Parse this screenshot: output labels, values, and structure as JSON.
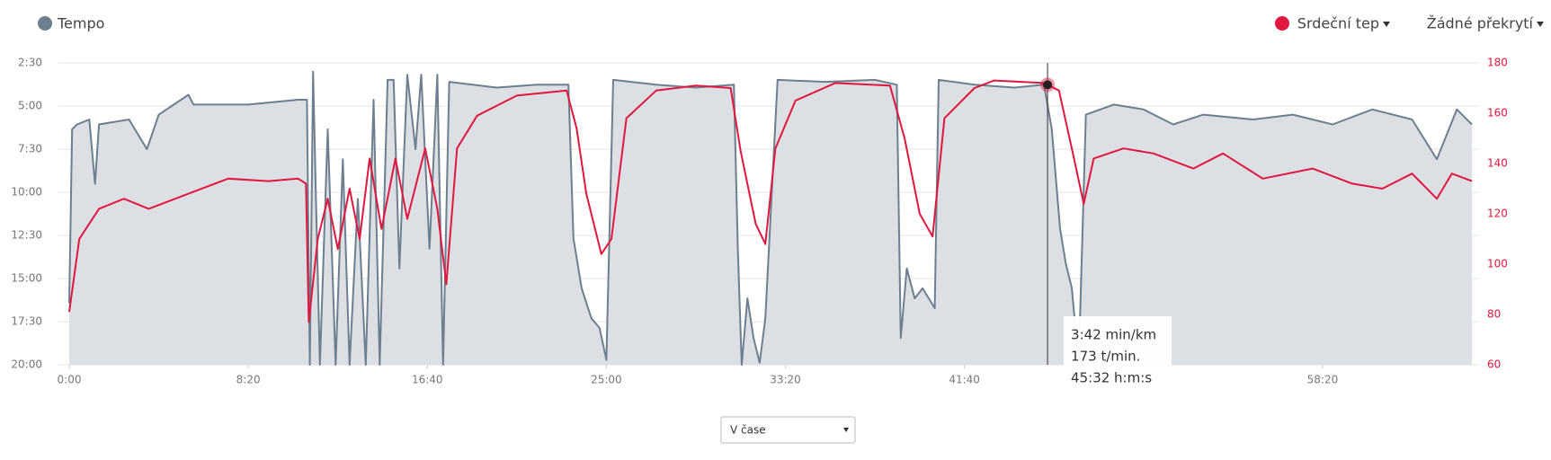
{
  "chart_data": {
    "type": "line",
    "legend": {
      "pace": "Tempo",
      "heart_rate": "Srdeční tep",
      "overlay": "Žádné překrytí"
    },
    "xlim": [
      0,
      3917
    ],
    "xticks": [
      {
        "value": 0,
        "label": "0:00"
      },
      {
        "value": 500,
        "label": "8:20"
      },
      {
        "value": 1000,
        "label": "16:40"
      },
      {
        "value": 1500,
        "label": "25:00"
      },
      {
        "value": 2000,
        "label": "33:20"
      },
      {
        "value": 2500,
        "label": "41:40"
      },
      {
        "value": 3500,
        "label": "58:20"
      }
    ],
    "ylim": [
      1200,
      150
    ],
    "yticks": [
      {
        "value": 150,
        "label": "2:30"
      },
      {
        "value": 300,
        "label": "5:00"
      },
      {
        "value": 450,
        "label": "7:30"
      },
      {
        "value": 600,
        "label": "10:00"
      },
      {
        "value": 750,
        "label": "12:30"
      },
      {
        "value": 900,
        "label": "15:00"
      },
      {
        "value": 1050,
        "label": "17:30"
      },
      {
        "value": 1200,
        "label": "20:00"
      }
    ],
    "y2lim": [
      60,
      180
    ],
    "y2ticks": [
      60,
      80,
      100,
      120,
      140,
      160,
      180
    ],
    "grid": true,
    "series": [
      {
        "name": "Tempo",
        "color": "#6d7f8e",
        "fill": "#dcdfe3",
        "x": [
          0,
          8,
          22,
          56,
          72,
          83,
          167,
          217,
          250,
          333,
          347,
          500,
          639,
          664,
          672,
          681,
          689,
          700,
          722,
          744,
          764,
          783,
          806,
          828,
          850,
          867,
          889,
          906,
          922,
          944,
          967,
          983,
          1006,
          1028,
          1044,
          1061,
          1194,
          1306,
          1394,
          1408,
          1431,
          1458,
          1481,
          1500,
          1519,
          1639,
          1750,
          1856,
          1867,
          1878,
          1894,
          1911,
          1928,
          1944,
          1978,
          2111,
          2250,
          2311,
          2322,
          2339,
          2361,
          2383,
          2417,
          2428,
          2528,
          2639,
          2722,
          2744,
          2767,
          2783,
          2800,
          2819,
          2839,
          2917,
          3000,
          3083,
          3167,
          3306,
          3417,
          3528,
          3639,
          3750,
          3819,
          3875,
          3917
        ],
        "values": [
          986,
          381,
          364,
          347,
          571,
          364,
          347,
          450,
          330,
          261,
          295,
          295,
          278,
          278,
          1200,
          181,
          623,
          1200,
          381,
          1200,
          485,
          1200,
          623,
          1200,
          278,
          1200,
          209,
          209,
          865,
          191,
          450,
          191,
          796,
          191,
          1200,
          216,
          236,
          226,
          226,
          761,
          934,
          1038,
          1072,
          1183,
          209,
          226,
          236,
          226,
          796,
          1200,
          969,
          1107,
          1193,
          1038,
          209,
          216,
          209,
          226,
          1107,
          865,
          969,
          934,
          1003,
          209,
          226,
          236,
          226,
          381,
          727,
          848,
          934,
          1200,
          330,
          295,
          312,
          364,
          330,
          347,
          330,
          364,
          312,
          347,
          485,
          312,
          364
        ]
      },
      {
        "name": "Srdeční tep",
        "color": "#e0173f",
        "axis": "y2",
        "x": [
          0,
          28,
          83,
          153,
          222,
          333,
          444,
          556,
          639,
          661,
          669,
          694,
          722,
          750,
          783,
          811,
          839,
          872,
          911,
          944,
          994,
          1028,
          1053,
          1083,
          1139,
          1250,
          1389,
          1417,
          1444,
          1486,
          1514,
          1556,
          1639,
          1750,
          1847,
          1875,
          1917,
          1944,
          1972,
          2028,
          2139,
          2292,
          2333,
          2375,
          2411,
          2444,
          2528,
          2583,
          2722,
          2764,
          2806,
          2833,
          2861,
          2944,
          3028,
          3139,
          3222,
          3333,
          3472,
          3583,
          3667,
          3750,
          3819,
          3861,
          3917
        ],
        "values": [
          81,
          110,
          122,
          126,
          122,
          128,
          134,
          133,
          134,
          132,
          77,
          110,
          126,
          106,
          130,
          110,
          142,
          114,
          142,
          118,
          146,
          122,
          92,
          146,
          159,
          167,
          169,
          154,
          128,
          104,
          110,
          158,
          169,
          171,
          170,
          145,
          116,
          108,
          146,
          165,
          172,
          171,
          150,
          120,
          111,
          158,
          170,
          173,
          172,
          169,
          142,
          124,
          142,
          146,
          144,
          138,
          144,
          134,
          138,
          132,
          130,
          136,
          126,
          136,
          133
        ]
      }
    ],
    "tooltip": {
      "x": 2732,
      "pace": "3:42 min/km",
      "heart_rate": "173 t/min.",
      "time": "45:32 h:m:s"
    },
    "view_select": "V čase"
  }
}
